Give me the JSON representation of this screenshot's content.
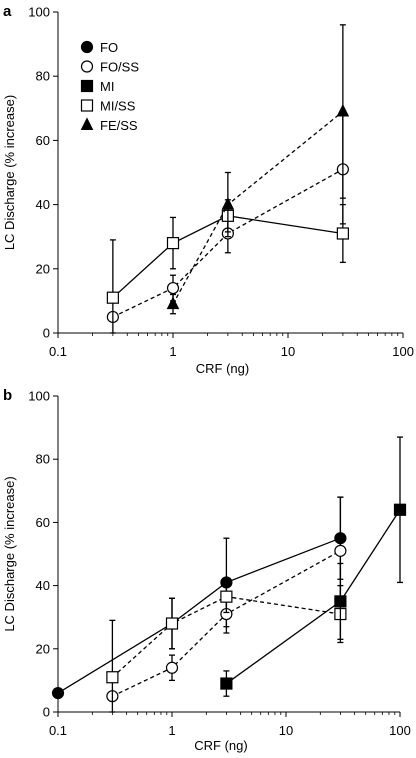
{
  "chart_data": [
    {
      "panel": "a",
      "type": "line",
      "xscale": "log",
      "xlabel": "CRF (ng)",
      "ylabel": "LC Discharge (% increase)",
      "xlim": [
        0.1,
        100
      ],
      "ylim": [
        0,
        100
      ],
      "xticks": [
        "0.1",
        "1",
        "10",
        "100"
      ],
      "yticks": [
        "0",
        "20",
        "40",
        "60",
        "80",
        "100"
      ],
      "legend": "top-left",
      "grid": false,
      "series": [
        {
          "name": "FO/SS",
          "marker": "open-circle",
          "line": "dashed",
          "x": [
            0.3,
            1,
            3,
            30
          ],
          "y": [
            5,
            14,
            31,
            51
          ],
          "err": [
            0,
            4,
            6,
            17
          ]
        },
        {
          "name": "MI/SS",
          "marker": "open-square",
          "line": "solid",
          "x": [
            0.3,
            1,
            3,
            30
          ],
          "y": [
            11,
            28,
            36.5,
            31
          ],
          "err": [
            18,
            8,
            5,
            9
          ]
        },
        {
          "name": "FE/SS",
          "marker": "filled-triangle",
          "line": "dashed",
          "x": [
            1,
            3,
            30
          ],
          "y": [
            9,
            40,
            69
          ],
          "err": [
            3,
            10,
            27
          ]
        }
      ],
      "legend_entries": [
        {
          "name": "FO",
          "marker": "filled-circle"
        },
        {
          "name": "FO/SS",
          "marker": "open-circle"
        },
        {
          "name": "MI",
          "marker": "filled-square"
        },
        {
          "name": "MI/SS",
          "marker": "open-square"
        },
        {
          "name": "FE/SS",
          "marker": "filled-triangle"
        }
      ]
    },
    {
      "panel": "b",
      "type": "line",
      "xscale": "log",
      "xlabel": "CRF (ng)",
      "ylabel": "LC Discharge (% increase)",
      "xlim": [
        0.1,
        100
      ],
      "ylim": [
        0,
        100
      ],
      "xticks": [
        "0.1",
        "1",
        "10",
        "100"
      ],
      "yticks": [
        "0",
        "20",
        "40",
        "60",
        "80",
        "100"
      ],
      "grid": false,
      "series": [
        {
          "name": "FO",
          "marker": "filled-circle",
          "line": "solid",
          "x": [
            0.1,
            1,
            3,
            30
          ],
          "y": [
            6,
            28,
            41,
            55
          ],
          "err": [
            0,
            8,
            14,
            13
          ]
        },
        {
          "name": "FO/SS",
          "marker": "open-circle",
          "line": "dashed",
          "x": [
            0.3,
            1,
            3,
            30
          ],
          "y": [
            5,
            14,
            31,
            51
          ],
          "err": [
            0,
            4,
            6,
            17
          ]
        },
        {
          "name": "MI/SS",
          "marker": "open-square",
          "line": "dashed",
          "x": [
            0.3,
            1,
            3,
            30
          ],
          "y": [
            11,
            28,
            36.5,
            31
          ],
          "err": [
            18,
            8,
            5,
            9
          ]
        },
        {
          "name": "MI",
          "marker": "filled-square",
          "line": "solid",
          "x": [
            3,
            30,
            100
          ],
          "y": [
            9,
            35,
            64
          ],
          "err": [
            4,
            12,
            23
          ]
        }
      ]
    }
  ]
}
